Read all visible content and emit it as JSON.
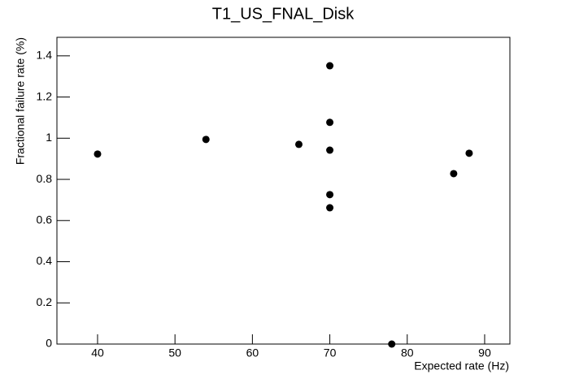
{
  "chart_data": {
    "type": "scatter",
    "title": "T1_US_FNAL_Disk",
    "x_label": "Expected rate (Hz)",
    "y_label": "Fractional failure rate (%)",
    "x": [
      40,
      54,
      66,
      70,
      70,
      70,
      70,
      70,
      78,
      86,
      88
    ],
    "values": [
      0.923,
      0.994,
      0.97,
      1.352,
      1.077,
      0.942,
      0.726,
      0.662,
      0,
      0.828,
      0.927
    ],
    "color": "#000000",
    "xlim": [
      34.75,
      93.26
    ],
    "xticks": [
      40,
      50,
      60,
      70,
      80,
      90
    ],
    "ylim": [
      0,
      1.49
    ],
    "yticks": [
      0,
      0.2,
      0.4,
      0.6,
      0.8,
      1,
      1.2,
      1.4
    ],
    "grid": false
  }
}
